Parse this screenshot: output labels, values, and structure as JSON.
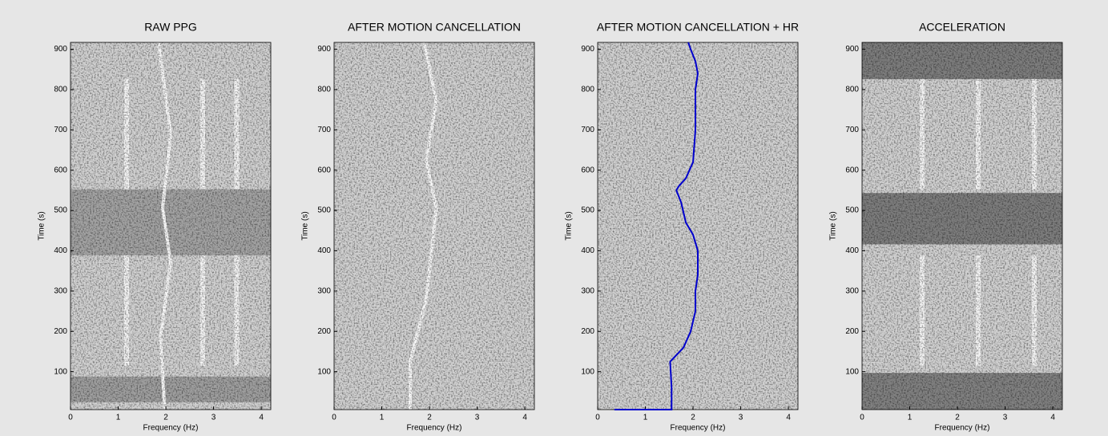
{
  "chart_data": [
    {
      "type": "spectrogram",
      "title": "RAW PPG",
      "xlabel": "Frequency (Hz)",
      "ylabel": "Time (s)",
      "xlim": [
        0,
        4.2
      ],
      "xticks": [
        0,
        1,
        2,
        3,
        4
      ],
      "ylim": [
        6,
        917
      ],
      "yticks": [
        100,
        200,
        300,
        400,
        500,
        600,
        700,
        800,
        900
      ]
    },
    {
      "type": "spectrogram",
      "title": "AFTER MOTION CANCELLATION",
      "xlabel": "Frequency (Hz)",
      "ylabel": "Time (s)",
      "xlim": [
        0,
        4.2
      ],
      "xticks": [
        0,
        1,
        2,
        3,
        4
      ],
      "ylim": [
        6,
        917
      ],
      "yticks": [
        100,
        200,
        300,
        400,
        500,
        600,
        700,
        800,
        900
      ]
    },
    {
      "type": "spectrogram",
      "title": "AFTER MOTION CANCELLATION + HR",
      "xlabel": "Frequency (Hz)",
      "ylabel": "Time (s)",
      "xlim": [
        0,
        4.2
      ],
      "xticks": [
        0,
        1,
        2,
        3,
        4
      ],
      "ylim": [
        6,
        917
      ],
      "yticks": [
        100,
        200,
        300,
        400,
        500,
        600,
        700,
        800,
        900
      ],
      "series": [
        {
          "color": "#0000cc",
          "x": [
            0.35,
            1.55,
            1.55,
            1.52,
            1.6,
            1.8,
            1.95,
            2.05,
            2.05,
            2.1,
            2.1,
            2.0,
            1.85,
            1.75,
            1.65,
            1.7,
            1.85,
            2.0,
            2.05,
            2.05,
            2.1,
            2.05,
            1.95,
            1.9
          ],
          "y": [
            6,
            6,
            60,
            125,
            135,
            160,
            200,
            250,
            300,
            340,
            400,
            440,
            470,
            520,
            550,
            560,
            580,
            620,
            700,
            800,
            840,
            870,
            900,
            917
          ]
        }
      ]
    },
    {
      "type": "spectrogram",
      "title": "ACCELERATION",
      "xlabel": "Frequency (Hz)",
      "ylabel": "Time (s)",
      "xlim": [
        0,
        4.2
      ],
      "xticks": [
        0,
        1,
        2,
        3,
        4
      ],
      "ylim": [
        6,
        917
      ],
      "yticks": [
        100,
        200,
        300,
        400,
        500,
        600,
        700,
        800,
        900
      ]
    }
  ]
}
